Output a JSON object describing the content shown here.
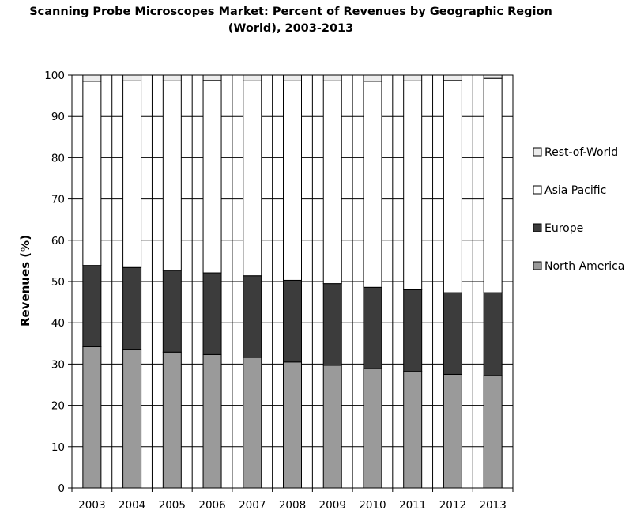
{
  "chart_data": {
    "type": "bar",
    "stacked": true,
    "title": "Scanning Probe Microscopes Market: Percent of Revenues by Geographic Region",
    "subtitle": "(World), 2003-2013",
    "ylabel": "Revenues (%)",
    "xlabel": "",
    "ylim": [
      0,
      100
    ],
    "yticks": [
      0,
      10,
      20,
      30,
      40,
      50,
      60,
      70,
      80,
      90,
      100
    ],
    "grid": true,
    "legend_position": "right",
    "categories": [
      "2003",
      "2004",
      "2005",
      "2006",
      "2007",
      "2008",
      "2009",
      "2010",
      "2011",
      "2012",
      "2013"
    ],
    "series": [
      {
        "name": "North America",
        "color": "#9a9a9a",
        "values": [
          34.2,
          33.6,
          32.9,
          32.3,
          31.6,
          30.5,
          29.7,
          28.9,
          28.2,
          27.5,
          27.2
        ]
      },
      {
        "name": "Europe",
        "color": "#3c3c3c",
        "values": [
          19.7,
          19.8,
          19.8,
          19.8,
          19.8,
          19.8,
          19.8,
          19.7,
          19.8,
          19.8,
          20.1
        ]
      },
      {
        "name": "Asia Pacific",
        "color": "#ffffff",
        "values": [
          44.6,
          45.2,
          45.9,
          46.6,
          47.2,
          48.3,
          49.1,
          49.9,
          50.6,
          51.4,
          51.9
        ]
      },
      {
        "name": "Rest-of-World",
        "color": "#ececec",
        "values": [
          1.5,
          1.4,
          1.4,
          1.3,
          1.4,
          1.4,
          1.4,
          1.5,
          1.4,
          1.3,
          0.8
        ]
      }
    ],
    "legend_order": [
      "Rest-of-World",
      "Asia Pacific",
      "Europe",
      "North America"
    ]
  }
}
